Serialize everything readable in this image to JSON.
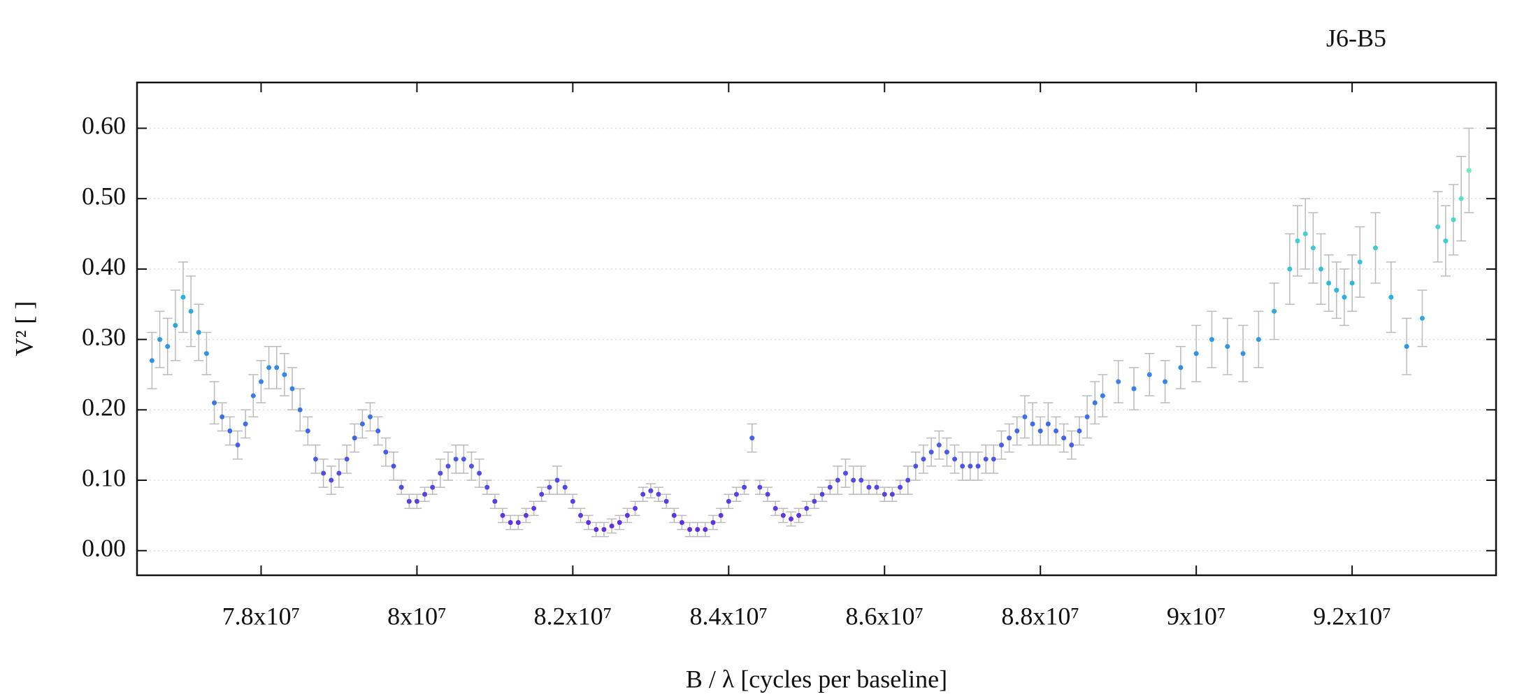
{
  "chart_data": {
    "type": "scatter",
    "title": "J6-B5",
    "xlabel": "B / λ [cycles per baseline]",
    "ylabel": "V² [ ]",
    "xlim": [
      76408000,
      93847000
    ],
    "ylim": [
      -0.035,
      0.665
    ],
    "xticks": [
      {
        "value": 78000000,
        "label": "7.8x10⁷"
      },
      {
        "value": 80000000,
        "label": "8x10⁷"
      },
      {
        "value": 82000000,
        "label": "8.2x10⁷"
      },
      {
        "value": 84000000,
        "label": "8.4x10⁷"
      },
      {
        "value": 86000000,
        "label": "8.6x10⁷"
      },
      {
        "value": 88000000,
        "label": "8.8x10⁷"
      },
      {
        "value": 90000000,
        "label": "9x10⁷"
      },
      {
        "value": 92000000,
        "label": "9.2x10⁷"
      }
    ],
    "yticks": [
      {
        "value": 0,
        "label": "0.00"
      },
      {
        "value": 0.1,
        "label": "0.10"
      },
      {
        "value": 0.2,
        "label": "0.20"
      },
      {
        "value": 0.3,
        "label": "0.30"
      },
      {
        "value": 0.4,
        "label": "0.40"
      },
      {
        "value": 0.5,
        "label": "0.50"
      },
      {
        "value": 0.6,
        "label": "0.60"
      }
    ],
    "grid": true,
    "error_color": "#bbbbbb",
    "colormap": [
      "#6a1fe0",
      "#3d6fe6",
      "#2ab4e0",
      "#6af0c0"
    ],
    "clim": [
      0,
      0.55
    ],
    "x": [
      76600000,
      76700000,
      76800000,
      76900000,
      77000000,
      77100000,
      77200000,
      77300000,
      77400000,
      77500000,
      77600000,
      77700000,
      77800000,
      77900000,
      78000000,
      78100000,
      78200000,
      78300000,
      78400000,
      78500000,
      78600000,
      78700000,
      78800000,
      78900000,
      79000000,
      79100000,
      79200000,
      79300000,
      79400000,
      79500000,
      79600000,
      79700000,
      79800000,
      79900000,
      80000000,
      80100000,
      80200000,
      80300000,
      80400000,
      80500000,
      80600000,
      80700000,
      80800000,
      80900000,
      81000000,
      81100000,
      81200000,
      81300000,
      81400000,
      81500000,
      81600000,
      81700000,
      81800000,
      81900000,
      82000000,
      82100000,
      82200000,
      82300000,
      82400000,
      82500000,
      82600000,
      82700000,
      82800000,
      82900000,
      83000000,
      83100000,
      83200000,
      83300000,
      83400000,
      83500000,
      83600000,
      83700000,
      83800000,
      83900000,
      84000000,
      84100000,
      84200000,
      84300000,
      84400000,
      84500000,
      84600000,
      84700000,
      84800000,
      84900000,
      85000000,
      85100000,
      85200000,
      85300000,
      85400000,
      85500000,
      85600000,
      85700000,
      85800000,
      85900000,
      86000000,
      86100000,
      86200000,
      86300000,
      86400000,
      86500000,
      86600000,
      86700000,
      86800000,
      86900000,
      87000000,
      87100000,
      87200000,
      87300000,
      87400000,
      87500000,
      87600000,
      87700000,
      87800000,
      87900000,
      88000000,
      88100000,
      88200000,
      88300000,
      88400000,
      88500000,
      88600000,
      88700000,
      88800000,
      89000000,
      89200000,
      89400000,
      89600000,
      89800000,
      90000000,
      90200000,
      90400000,
      90600000,
      90800000,
      91000000,
      91200000,
      91300000,
      91400000,
      91500000,
      91600000,
      91700000,
      91800000,
      91900000,
      92000000,
      92100000,
      92300000,
      92500000,
      92700000,
      92900000,
      93100000,
      93200000,
      93300000,
      93400000,
      93500000
    ],
    "values": [
      0.27,
      0.3,
      0.29,
      0.32,
      0.36,
      0.34,
      0.31,
      0.28,
      0.21,
      0.19,
      0.17,
      0.15,
      0.18,
      0.22,
      0.24,
      0.26,
      0.26,
      0.25,
      0.23,
      0.2,
      0.17,
      0.13,
      0.11,
      0.1,
      0.11,
      0.13,
      0.16,
      0.18,
      0.19,
      0.17,
      0.14,
      0.12,
      0.09,
      0.07,
      0.07,
      0.08,
      0.09,
      0.11,
      0.12,
      0.13,
      0.13,
      0.12,
      0.11,
      0.09,
      0.07,
      0.05,
      0.04,
      0.04,
      0.05,
      0.06,
      0.08,
      0.09,
      0.1,
      0.09,
      0.07,
      0.05,
      0.04,
      0.03,
      0.03,
      0.035,
      0.04,
      0.05,
      0.06,
      0.08,
      0.085,
      0.08,
      0.07,
      0.05,
      0.04,
      0.03,
      0.03,
      0.03,
      0.04,
      0.05,
      0.07,
      0.08,
      0.09,
      0.16,
      0.09,
      0.08,
      0.06,
      0.05,
      0.045,
      0.05,
      0.06,
      0.07,
      0.08,
      0.09,
      0.1,
      0.11,
      0.1,
      0.1,
      0.09,
      0.09,
      0.08,
      0.08,
      0.09,
      0.1,
      0.12,
      0.13,
      0.14,
      0.15,
      0.14,
      0.13,
      0.12,
      0.12,
      0.12,
      0.13,
      0.13,
      0.15,
      0.16,
      0.17,
      0.19,
      0.18,
      0.17,
      0.18,
      0.17,
      0.16,
      0.15,
      0.17,
      0.19,
      0.21,
      0.22,
      0.24,
      0.23,
      0.25,
      0.24,
      0.26,
      0.28,
      0.3,
      0.29,
      0.28,
      0.3,
      0.34,
      0.4,
      0.44,
      0.45,
      0.43,
      0.4,
      0.38,
      0.37,
      0.36,
      0.38,
      0.41,
      0.43,
      0.36,
      0.29,
      0.33,
      0.46,
      0.44,
      0.47,
      0.5,
      0.54
    ],
    "errors": [
      0.04,
      0.04,
      0.04,
      0.05,
      0.05,
      0.05,
      0.04,
      0.03,
      0.03,
      0.02,
      0.02,
      0.02,
      0.02,
      0.03,
      0.03,
      0.03,
      0.03,
      0.03,
      0.03,
      0.03,
      0.02,
      0.02,
      0.02,
      0.02,
      0.02,
      0.02,
      0.02,
      0.02,
      0.02,
      0.02,
      0.02,
      0.02,
      0.01,
      0.01,
      0.01,
      0.01,
      0.01,
      0.02,
      0.02,
      0.02,
      0.02,
      0.02,
      0.02,
      0.01,
      0.01,
      0.01,
      0.01,
      0.01,
      0.01,
      0.01,
      0.01,
      0.01,
      0.02,
      0.01,
      0.01,
      0.01,
      0.01,
      0.01,
      0.01,
      0.01,
      0.01,
      0.01,
      0.01,
      0.01,
      0.01,
      0.01,
      0.01,
      0.01,
      0.01,
      0.01,
      0.01,
      0.01,
      0.01,
      0.01,
      0.01,
      0.01,
      0.01,
      0.02,
      0.01,
      0.01,
      0.01,
      0.01,
      0.01,
      0.01,
      0.01,
      0.01,
      0.01,
      0.01,
      0.02,
      0.02,
      0.02,
      0.02,
      0.01,
      0.01,
      0.01,
      0.01,
      0.01,
      0.02,
      0.02,
      0.02,
      0.02,
      0.02,
      0.02,
      0.02,
      0.02,
      0.02,
      0.02,
      0.02,
      0.02,
      0.02,
      0.02,
      0.02,
      0.03,
      0.03,
      0.02,
      0.03,
      0.02,
      0.02,
      0.02,
      0.02,
      0.03,
      0.03,
      0.03,
      0.03,
      0.03,
      0.03,
      0.03,
      0.03,
      0.04,
      0.04,
      0.04,
      0.04,
      0.04,
      0.04,
      0.05,
      0.05,
      0.05,
      0.05,
      0.05,
      0.04,
      0.04,
      0.04,
      0.04,
      0.05,
      0.05,
      0.05,
      0.04,
      0.04,
      0.05,
      0.05,
      0.05,
      0.06,
      0.06
    ]
  }
}
